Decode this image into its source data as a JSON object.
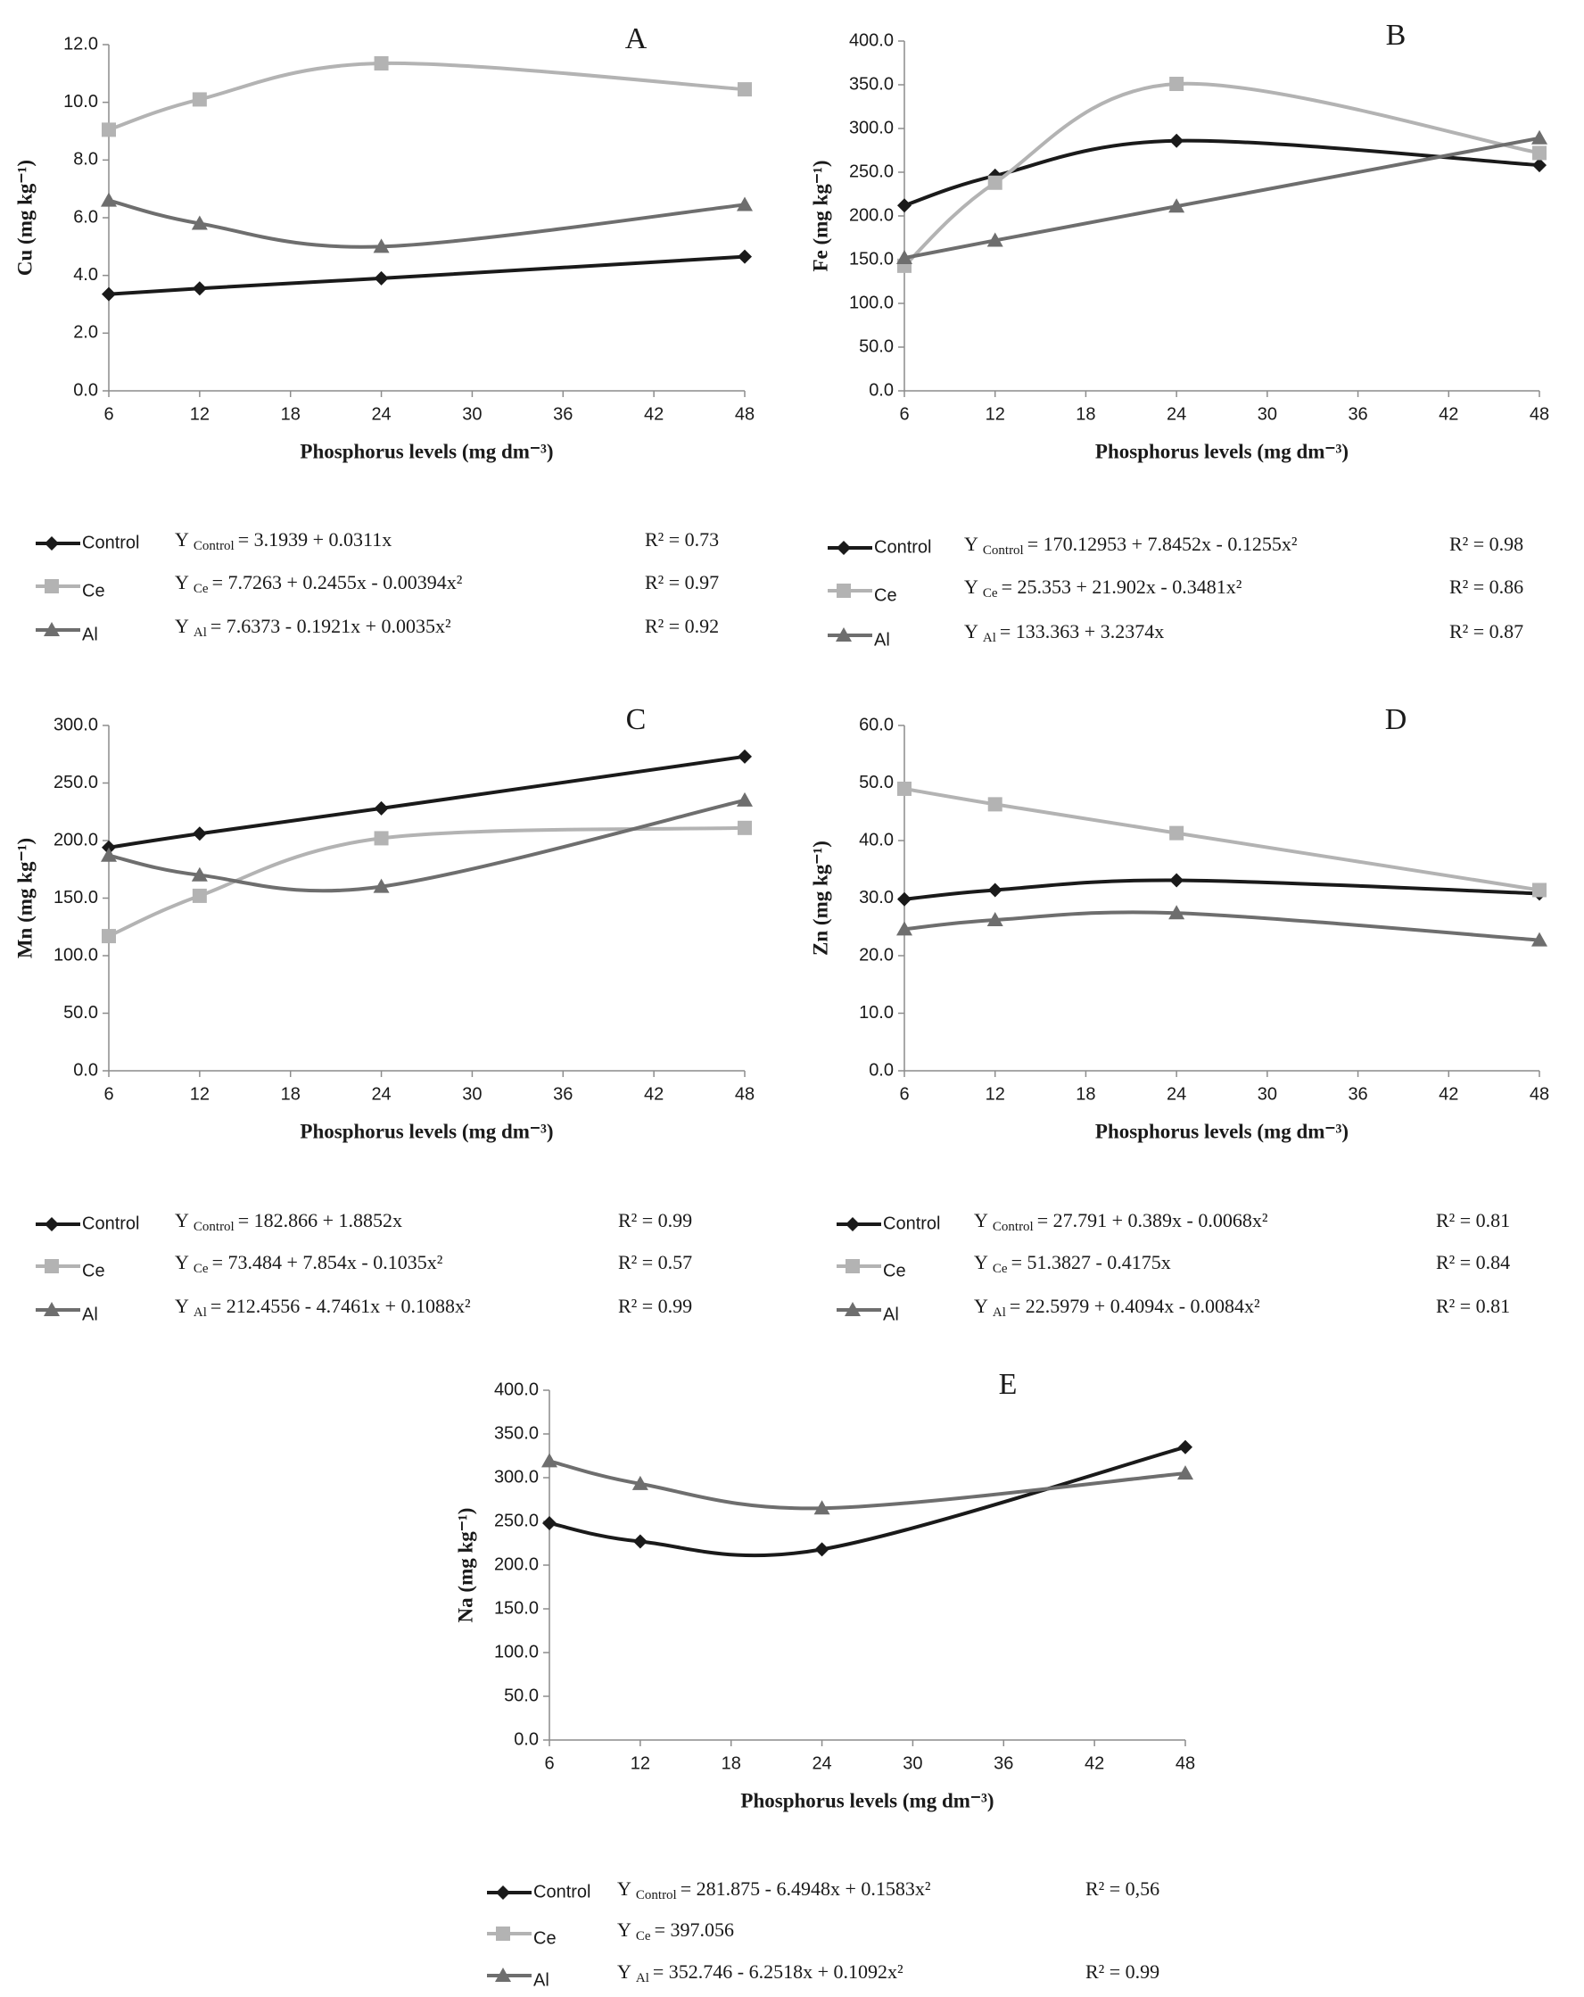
{
  "chart_data": [
    {
      "type": "line",
      "title": "A",
      "xlabel": "Phosphorus levels (mg dm⁻³)",
      "ylabel": "Cu (mg kg⁻¹)",
      "x": [
        6,
        12,
        24,
        48
      ],
      "xlim": [
        6,
        48
      ],
      "xticks": [
        6,
        12,
        18,
        24,
        30,
        36,
        42,
        48
      ],
      "ylim": [
        0,
        12
      ],
      "yticks": [
        {
          "value": 0,
          "label": "0.0"
        },
        {
          "value": 2,
          "label": "2.0"
        },
        {
          "value": 4,
          "label": "4.0"
        },
        {
          "value": 6,
          "label": "6.0"
        },
        {
          "value": 8,
          "label": "8.0"
        },
        {
          "value": 10,
          "label": "10.0"
        },
        {
          "value": 12,
          "label": "12.0"
        }
      ],
      "series": [
        {
          "name": "Control",
          "color": "#1a1a1a",
          "marker": "diamond",
          "values": [
            3.35,
            3.55,
            3.9,
            4.65
          ],
          "equation": {
            "y": "Y",
            "sub": "Control",
            "rhs": "= 3.1939 + 0.0311x"
          },
          "r2": "R² = 0.73"
        },
        {
          "name": "Ce",
          "color": "#b3b3b3",
          "marker": "square",
          "values": [
            9.05,
            10.1,
            11.35,
            10.45
          ],
          "equation": {
            "y": "Y",
            "sub": "Ce",
            "rhs": "= 7.7263 + 0.2455x - 0.00394x²"
          },
          "r2": "R² = 0.97"
        },
        {
          "name": "Al",
          "color": "#6e6e6e",
          "marker": "triangle",
          "values": [
            6.6,
            5.8,
            5.0,
            6.45
          ],
          "equation": {
            "y": "Y",
            "sub": "Al",
            "rhs": "= 7.6373 - 0.1921x + 0.0035x²"
          },
          "r2": "R² = 0.92"
        }
      ]
    },
    {
      "type": "line",
      "title": "B",
      "xlabel": "Phosphorus levels (mg dm⁻³)",
      "ylabel": "Fe (mg kg⁻¹)",
      "x": [
        6,
        12,
        24,
        48
      ],
      "xlim": [
        6,
        48
      ],
      "xticks": [
        6,
        12,
        18,
        24,
        30,
        36,
        42,
        48
      ],
      "ylim": [
        0,
        400
      ],
      "yticks": [
        {
          "value": 0,
          "label": "0.0"
        },
        {
          "value": 50,
          "label": "50.0"
        },
        {
          "value": 100,
          "label": "100.0"
        },
        {
          "value": 150,
          "label": "150.0"
        },
        {
          "value": 200,
          "label": "200.0"
        },
        {
          "value": 250,
          "label": "250.0"
        },
        {
          "value": 300,
          "label": "300.0"
        },
        {
          "value": 350,
          "label": "350.0"
        },
        {
          "value": 400,
          "label": "400.0"
        }
      ],
      "series": [
        {
          "name": "Control",
          "color": "#1a1a1a",
          "marker": "diamond",
          "values": [
            212,
            246,
            286,
            258
          ],
          "equation": {
            "y": "Y",
            "sub": "Control",
            "rhs": "= 170.12953 + 7.8452x - 0.1255x²"
          },
          "r2": "R² = 0.98"
        },
        {
          "name": "Ce",
          "color": "#b3b3b3",
          "marker": "square",
          "values": [
            143,
            238,
            351,
            272
          ],
          "equation": {
            "y": "Y",
            "sub": "Ce",
            "rhs": "= 25.353 + 21.902x - 0.3481x²"
          },
          "r2": "R² = 0.86"
        },
        {
          "name": "Al",
          "color": "#6e6e6e",
          "marker": "triangle",
          "values": [
            152,
            172,
            211,
            289
          ],
          "equation": {
            "y": "Y",
            "sub": "Al",
            "rhs": "= 133.363 + 3.2374x"
          },
          "r2": "R² = 0.87"
        }
      ]
    },
    {
      "type": "line",
      "title": "C",
      "xlabel": "Phosphorus levels (mg dm⁻³)",
      "ylabel": "Mn (mg kg⁻¹)",
      "x": [
        6,
        12,
        24,
        48
      ],
      "xlim": [
        6,
        48
      ],
      "xticks": [
        6,
        12,
        18,
        24,
        30,
        36,
        42,
        48
      ],
      "ylim": [
        0,
        300
      ],
      "yticks": [
        {
          "value": 0,
          "label": "0.0"
        },
        {
          "value": 50,
          "label": "50.0"
        },
        {
          "value": 100,
          "label": "100.0"
        },
        {
          "value": 150,
          "label": "150.0"
        },
        {
          "value": 200,
          "label": "200.0"
        },
        {
          "value": 250,
          "label": "250.0"
        },
        {
          "value": 300,
          "label": "300.0"
        }
      ],
      "series": [
        {
          "name": "Control",
          "color": "#1a1a1a",
          "marker": "diamond",
          "values": [
            194,
            206,
            228,
            273
          ],
          "equation": {
            "y": "Y",
            "sub": "Control",
            "rhs": "= 182.866 + 1.8852x"
          },
          "r2": "R² = 0.99"
        },
        {
          "name": "Ce",
          "color": "#b3b3b3",
          "marker": "square",
          "values": [
            117,
            152,
            202,
            211
          ],
          "equation": {
            "y": "Y",
            "sub": "Ce",
            "rhs": "= 73.484 + 7.854x - 0.1035x²"
          },
          "r2": "R² = 0.57"
        },
        {
          "name": "Al",
          "color": "#6e6e6e",
          "marker": "triangle",
          "values": [
            187,
            170,
            160,
            235
          ],
          "equation": {
            "y": "Y",
            "sub": "Al",
            "rhs": "= 212.4556 - 4.7461x + 0.1088x²"
          },
          "r2": "R² = 0.99"
        }
      ]
    },
    {
      "type": "line",
      "title": "D",
      "xlabel": "Phosphorus levels (mg dm⁻³)",
      "ylabel": "Zn (mg kg⁻¹)",
      "x": [
        6,
        12,
        24,
        48
      ],
      "xlim": [
        6,
        48
      ],
      "xticks": [
        6,
        12,
        18,
        24,
        30,
        36,
        42,
        48
      ],
      "ylim": [
        0,
        60
      ],
      "yticks": [
        {
          "value": 0,
          "label": "0.0"
        },
        {
          "value": 10,
          "label": "10.0"
        },
        {
          "value": 20,
          "label": "20.0"
        },
        {
          "value": 30,
          "label": "30.0"
        },
        {
          "value": 40,
          "label": "40.0"
        },
        {
          "value": 50,
          "label": "50.0"
        },
        {
          "value": 60,
          "label": "60.0"
        }
      ],
      "series": [
        {
          "name": "Control",
          "color": "#1a1a1a",
          "marker": "diamond",
          "values": [
            29.8,
            31.4,
            33.1,
            30.8
          ],
          "equation": {
            "y": "Y",
            "sub": "Control",
            "rhs": "= 27.791 + 0.389x - 0.0068x²"
          },
          "r2": "R² = 0.81"
        },
        {
          "name": "Ce",
          "color": "#b3b3b3",
          "marker": "square",
          "values": [
            49.0,
            46.3,
            41.3,
            31.4
          ],
          "equation": {
            "y": "Y",
            "sub": "Ce",
            "rhs": "= 51.3827 - 0.4175x"
          },
          "r2": "R² = 0.84"
        },
        {
          "name": "Al",
          "color": "#6e6e6e",
          "marker": "triangle",
          "values": [
            24.6,
            26.2,
            27.4,
            22.7
          ],
          "equation": {
            "y": "Y",
            "sub": "Al",
            "rhs": "= 22.5979 + 0.4094x - 0.0084x²"
          },
          "r2": "R² = 0.81"
        }
      ]
    },
    {
      "type": "line",
      "title": "E",
      "xlabel": "Phosphorus levels (mg dm⁻³)",
      "ylabel": "Na (mg kg⁻¹)",
      "x": [
        6,
        12,
        24,
        48
      ],
      "xlim": [
        6,
        48
      ],
      "xticks": [
        6,
        12,
        18,
        24,
        30,
        36,
        42,
        48
      ],
      "ylim": [
        0,
        400
      ],
      "yticks": [
        {
          "value": 0,
          "label": "0.0"
        },
        {
          "value": 50,
          "label": "50.0"
        },
        {
          "value": 100,
          "label": "100.0"
        },
        {
          "value": 150,
          "label": "150.0"
        },
        {
          "value": 200,
          "label": "200.0"
        },
        {
          "value": 250,
          "label": "250.0"
        },
        {
          "value": 300,
          "label": "300.0"
        },
        {
          "value": 350,
          "label": "350.0"
        },
        {
          "value": 400,
          "label": "400.0"
        }
      ],
      "series": [
        {
          "name": "Control",
          "color": "#1a1a1a",
          "marker": "diamond",
          "values": [
            248,
            227,
            218,
            335
          ],
          "equation": {
            "y": "Y",
            "sub": "Control",
            "rhs": "= 281.875 - 6.4948x + 0.1583x²"
          },
          "r2": "R² = 0,56"
        },
        {
          "name": "Ce",
          "color": "#b3b3b3",
          "marker": "square",
          "values": [
            null,
            null,
            null,
            null
          ],
          "equation": {
            "y": "Y",
            "sub": "Ce",
            "rhs": "= 397.056"
          }
        },
        {
          "name": "Al",
          "color": "#6e6e6e",
          "marker": "triangle",
          "values": [
            319,
            293,
            265,
            305
          ],
          "equation": {
            "y": "Y",
            "sub": "Al",
            "rhs": "= 352.746 - 6.2518x + 0.1092x²"
          },
          "r2": "R² = 0.99"
        }
      ]
    }
  ]
}
